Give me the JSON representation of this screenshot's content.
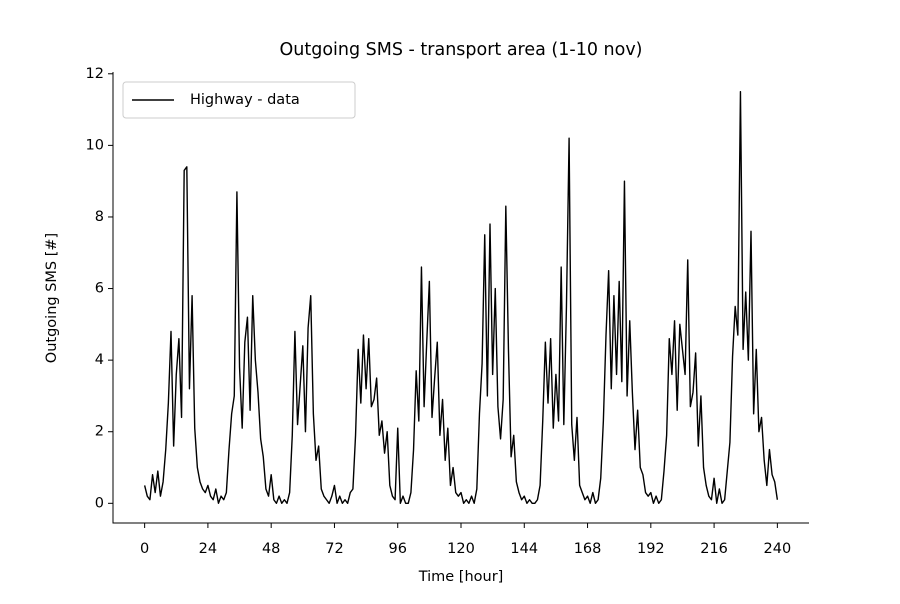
{
  "chart_data": {
    "type": "line",
    "title": "Outgoing SMS - transport area (1-10 nov)",
    "x_label": "Time [hour]",
    "y_label": "Outgoing SMS [#]",
    "x": [
      0,
      1,
      2,
      3,
      4,
      5,
      6,
      7,
      8,
      9,
      10,
      11,
      12,
      13,
      14,
      15,
      16,
      17,
      18,
      19,
      20,
      21,
      22,
      23,
      24,
      25,
      26,
      27,
      28,
      29,
      30,
      31,
      32,
      33,
      34,
      35,
      36,
      37,
      38,
      39,
      40,
      41,
      42,
      43,
      44,
      45,
      46,
      47,
      48,
      49,
      50,
      51,
      52,
      53,
      54,
      55,
      56,
      57,
      58,
      59,
      60,
      61,
      62,
      63,
      64,
      65,
      66,
      67,
      68,
      69,
      70,
      71,
      72,
      73,
      74,
      75,
      76,
      77,
      78,
      79,
      80,
      81,
      82,
      83,
      84,
      85,
      86,
      87,
      88,
      89,
      90,
      91,
      92,
      93,
      94,
      95,
      96,
      97,
      98,
      99,
      100,
      101,
      102,
      103,
      104,
      105,
      106,
      107,
      108,
      109,
      110,
      111,
      112,
      113,
      114,
      115,
      116,
      117,
      118,
      119,
      120,
      121,
      122,
      123,
      124,
      125,
      126,
      127,
      128,
      129,
      130,
      131,
      132,
      133,
      134,
      135,
      136,
      137,
      138,
      139,
      140,
      141,
      142,
      143,
      144,
      145,
      146,
      147,
      148,
      149,
      150,
      151,
      152,
      153,
      154,
      155,
      156,
      157,
      158,
      159,
      160,
      161,
      162,
      163,
      164,
      165,
      166,
      167,
      168,
      169,
      170,
      171,
      172,
      173,
      174,
      175,
      176,
      177,
      178,
      179,
      180,
      181,
      182,
      183,
      184,
      185,
      186,
      187,
      188,
      189,
      190,
      191,
      192,
      193,
      194,
      195,
      196,
      197,
      198,
      199,
      200,
      201,
      202,
      203,
      204,
      205,
      206,
      207,
      208,
      209,
      210,
      211,
      212,
      213,
      214,
      215,
      216,
      217,
      218,
      219,
      220,
      221,
      222,
      223,
      224,
      225,
      226,
      227,
      228,
      229,
      230,
      231,
      232,
      233,
      234,
      235,
      236,
      237,
      238,
      239,
      240
    ],
    "series": [
      {
        "name": "Highway - data",
        "color": "#000000",
        "values": [
          0.5,
          0.2,
          0.1,
          0.8,
          0.3,
          0.9,
          0.2,
          0.6,
          1.5,
          2.8,
          4.8,
          1.6,
          3.6,
          4.6,
          2.4,
          9.3,
          9.4,
          3.2,
          5.8,
          2.1,
          1.0,
          0.6,
          0.4,
          0.3,
          0.5,
          0.2,
          0.1,
          0.4,
          0,
          0.2,
          0.1,
          0.3,
          1.5,
          2.5,
          3.0,
          8.7,
          3.8,
          2.1,
          4.5,
          5.2,
          2.6,
          5.8,
          4.0,
          3.1,
          1.8,
          1.3,
          0.4,
          0.2,
          0.8,
          0.1,
          0,
          0.2,
          0,
          0.1,
          0,
          0.3,
          1.9,
          4.8,
          2.2,
          3.3,
          4.4,
          2.0,
          4.9,
          5.8,
          2.5,
          1.2,
          1.6,
          0.4,
          0.2,
          0.1,
          0,
          0.2,
          0.5,
          0,
          0.2,
          0,
          0.1,
          0,
          0.3,
          0.4,
          1.9,
          4.3,
          2.8,
          4.7,
          3.2,
          4.6,
          2.7,
          2.9,
          3.5,
          1.9,
          2.3,
          1.4,
          2.0,
          0.5,
          0.2,
          0.1,
          2.1,
          0,
          0.2,
          0,
          0,
          0.3,
          1.5,
          3.7,
          2.3,
          6.6,
          2.7,
          4.5,
          6.2,
          2.4,
          3.5,
          4.5,
          1.9,
          2.9,
          1.2,
          2.1,
          0.5,
          1.0,
          0.3,
          0.2,
          0.3,
          0,
          0.1,
          0,
          0.2,
          0,
          0.4,
          2.5,
          3.9,
          7.5,
          3.0,
          7.8,
          3.6,
          6.0,
          2.7,
          1.8,
          2.9,
          8.3,
          4.3,
          1.3,
          1.9,
          0.6,
          0.3,
          0.1,
          0.2,
          0,
          0.1,
          0,
          0,
          0.1,
          0.5,
          2.3,
          4.5,
          2.8,
          4.6,
          2.1,
          3.6,
          2.3,
          6.6,
          2.2,
          5.5,
          10.2,
          2.2,
          1.2,
          2.4,
          0.5,
          0.3,
          0.1,
          0.2,
          0,
          0.3,
          0,
          0.1,
          0.7,
          2.3,
          4.7,
          6.5,
          3.2,
          5.8,
          3.6,
          6.2,
          3.4,
          9.0,
          3.0,
          5.1,
          3.1,
          1.5,
          2.6,
          1.0,
          0.8,
          0.3,
          0.2,
          0.3,
          0,
          0.2,
          0,
          0.1,
          0.9,
          1.9,
          4.6,
          3.6,
          5.1,
          2.6,
          5.0,
          4.3,
          3.6,
          6.8,
          2.7,
          3.1,
          4.2,
          1.6,
          3.0,
          1.0,
          0.5,
          0.2,
          0.1,
          0.7,
          0,
          0.4,
          0,
          0.1,
          0.9,
          1.7,
          4.1,
          5.5,
          4.7,
          11.5,
          4.3,
          5.9,
          4.0,
          7.6,
          2.5,
          4.3,
          2.0,
          2.4,
          1.2,
          0.5,
          1.5,
          0.8,
          0.6,
          0.1
        ]
      }
    ],
    "xlim": [
      -12,
      252
    ],
    "ylim": [
      -0.55,
      12.05
    ],
    "xticks": [
      0,
      24,
      48,
      72,
      96,
      120,
      144,
      168,
      192,
      216,
      240
    ],
    "yticks": [
      0,
      2,
      4,
      6,
      8,
      10,
      12
    ],
    "legend": "upper left"
  }
}
